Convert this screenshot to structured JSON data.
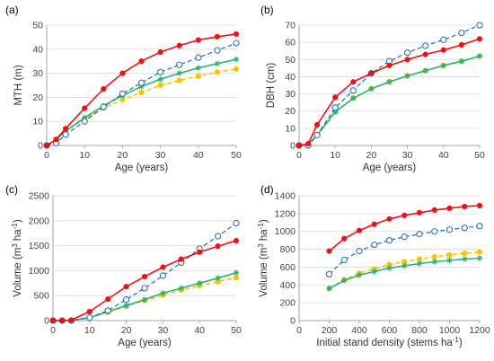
{
  "colors": {
    "red": "#ee1111",
    "blue": "#2e75b6",
    "green": "#28b473",
    "orange": "#ffc000",
    "axis": "#a6a6a6",
    "grid": "#d9d9d9"
  },
  "chart_data": [
    {
      "panel": "(a)",
      "type": "line",
      "xlabel": "Age (years)",
      "ylabel": "MTH (m)",
      "xlim": [
        0,
        50
      ],
      "ylim": [
        0,
        50
      ],
      "xticks": [
        0,
        10,
        20,
        30,
        40,
        50
      ],
      "yticks": [
        0,
        10,
        20,
        30,
        40,
        50
      ],
      "grid": "horizontal",
      "series": [
        {
          "style": "red-dot",
          "x": [
            0,
            2.5,
            5,
            10,
            15,
            20,
            25,
            30,
            35,
            40,
            45,
            50
          ],
          "y": [
            0,
            2.5,
            7,
            15.5,
            23.5,
            30,
            35,
            38.8,
            41.5,
            43.8,
            45.2,
            46.3
          ]
        },
        {
          "style": "blue-dashed-circle",
          "x": [
            0,
            2.5,
            5,
            10,
            15,
            20,
            25,
            30,
            35,
            40,
            45,
            50
          ],
          "y": [
            0,
            1,
            4.5,
            10,
            16,
            21.5,
            26,
            30.5,
            33.5,
            36.5,
            39.5,
            42.5
          ]
        },
        {
          "style": "green-star",
          "x": [
            0,
            2.5,
            5,
            10,
            15,
            20,
            25,
            30,
            35,
            40,
            45,
            50
          ],
          "y": [
            0,
            2.5,
            6,
            11.5,
            16.5,
            20.8,
            24.5,
            27.5,
            30,
            32.2,
            34,
            35.8
          ]
        },
        {
          "style": "orange-dashed-dot",
          "x": [
            0,
            2.5,
            5,
            10,
            15,
            20,
            25,
            30,
            35,
            40,
            45,
            50
          ],
          "y": [
            0,
            2.5,
            6,
            11,
            15.5,
            19,
            22,
            25,
            27,
            28.8,
            30.5,
            31.8
          ]
        }
      ]
    },
    {
      "panel": "(b)",
      "type": "line",
      "xlabel": "Age (years)",
      "ylabel": "DBH (cm)",
      "xlim": [
        0,
        50
      ],
      "ylim": [
        0,
        70
      ],
      "xticks": [
        0,
        10,
        20,
        30,
        40,
        50
      ],
      "yticks": [
        0,
        10,
        20,
        30,
        40,
        50,
        60,
        70
      ],
      "grid": "horizontal",
      "series": [
        {
          "style": "red-dot",
          "x": [
            0,
            2.5,
            5,
            10,
            15,
            20,
            25,
            30,
            35,
            40,
            45,
            50
          ],
          "y": [
            0,
            1,
            12,
            28,
            37,
            42,
            46.5,
            50,
            53,
            55.5,
            58.5,
            62
          ]
        },
        {
          "style": "blue-dashed-circle",
          "x": [
            0,
            2.5,
            5,
            10,
            15,
            20,
            25,
            30,
            35,
            40,
            45,
            50
          ],
          "y": [
            0,
            0,
            6,
            22,
            32,
            42,
            49,
            54,
            58,
            61.5,
            65.5,
            70
          ]
        },
        {
          "style": "green-star",
          "x": [
            0,
            2.5,
            5,
            10,
            15,
            20,
            25,
            30,
            35,
            40,
            45,
            50
          ],
          "y": [
            0,
            0.5,
            6,
            19.5,
            27.5,
            33,
            37,
            40.5,
            43.5,
            46.5,
            49,
            52
          ]
        },
        {
          "style": "orange-dashed-dot",
          "x": [
            0,
            2.5,
            5,
            10,
            15,
            20,
            25,
            30,
            35,
            40,
            45,
            50
          ],
          "y": [
            0,
            0.5,
            6,
            19.5,
            27.5,
            33,
            37,
            40.5,
            43.5,
            46.5,
            49,
            52
          ]
        }
      ]
    },
    {
      "panel": "(c)",
      "type": "line",
      "xlabel": "Age (years)",
      "ylabel": "Volume (m³ ha⁻¹)",
      "xlim": [
        0,
        50
      ],
      "ylim": [
        0,
        2500
      ],
      "xticks": [
        0,
        10,
        20,
        30,
        40,
        50
      ],
      "yticks": [
        0,
        500,
        1000,
        1500,
        2000,
        2500
      ],
      "grid": "horizontal",
      "series": [
        {
          "style": "red-dot",
          "x": [
            0,
            2.5,
            5,
            10,
            15,
            20,
            25,
            30,
            35,
            40,
            45,
            50
          ],
          "y": [
            0,
            0,
            10,
            180,
            430,
            680,
            880,
            1070,
            1230,
            1370,
            1490,
            1600
          ]
        },
        {
          "style": "blue-dashed-circle",
          "x": [
            0,
            2.5,
            5,
            10,
            15,
            20,
            25,
            30,
            35,
            40,
            45,
            50
          ],
          "y": [
            0,
            0,
            0,
            60,
            200,
            420,
            650,
            900,
            1160,
            1440,
            1690,
            1950
          ]
        },
        {
          "style": "green-star",
          "x": [
            0,
            2.5,
            5,
            10,
            15,
            20,
            25,
            30,
            35,
            40,
            45,
            50
          ],
          "y": [
            0,
            0,
            0,
            60,
            180,
            300,
            420,
            550,
            650,
            750,
            850,
            960
          ]
        },
        {
          "style": "orange-dashed-dot",
          "x": [
            0,
            2.5,
            5,
            10,
            15,
            20,
            25,
            30,
            35,
            40,
            45,
            50
          ],
          "y": [
            0,
            0,
            0,
            60,
            170,
            290,
            400,
            510,
            610,
            700,
            780,
            860
          ]
        }
      ]
    },
    {
      "panel": "(d)",
      "type": "line",
      "xlabel": "Initial stand density (stems ha⁻¹)",
      "ylabel": "Volume (m³ ha⁻¹)",
      "xlim": [
        0,
        1200
      ],
      "ylim": [
        0,
        1400
      ],
      "xticks": [
        0,
        200,
        400,
        600,
        800,
        1000,
        1200
      ],
      "yticks": [
        0,
        200,
        400,
        600,
        800,
        1000,
        1200,
        1400
      ],
      "grid": "horizontal",
      "series": [
        {
          "style": "red-dot",
          "x": [
            200,
            300,
            400,
            500,
            600,
            700,
            800,
            900,
            1000,
            1100,
            1200
          ],
          "y": [
            780,
            920,
            1010,
            1080,
            1140,
            1180,
            1210,
            1240,
            1260,
            1280,
            1290
          ]
        },
        {
          "style": "blue-dashed-circle",
          "x": [
            200,
            300,
            400,
            500,
            600,
            700,
            800,
            900,
            1000,
            1100,
            1200
          ],
          "y": [
            520,
            680,
            780,
            850,
            900,
            940,
            970,
            1000,
            1020,
            1040,
            1060
          ]
        },
        {
          "style": "green-star",
          "x": [
            200,
            300,
            400,
            500,
            600,
            700,
            800,
            900,
            1000,
            1100,
            1200
          ],
          "y": [
            360,
            450,
            510,
            550,
            590,
            615,
            640,
            660,
            675,
            690,
            700
          ]
        },
        {
          "style": "orange-dashed-dot",
          "x": [
            200,
            300,
            400,
            500,
            600,
            700,
            800,
            900,
            1000,
            1100,
            1200
          ],
          "y": [
            360,
            460,
            530,
            580,
            630,
            660,
            690,
            715,
            735,
            755,
            770
          ]
        }
      ]
    }
  ]
}
